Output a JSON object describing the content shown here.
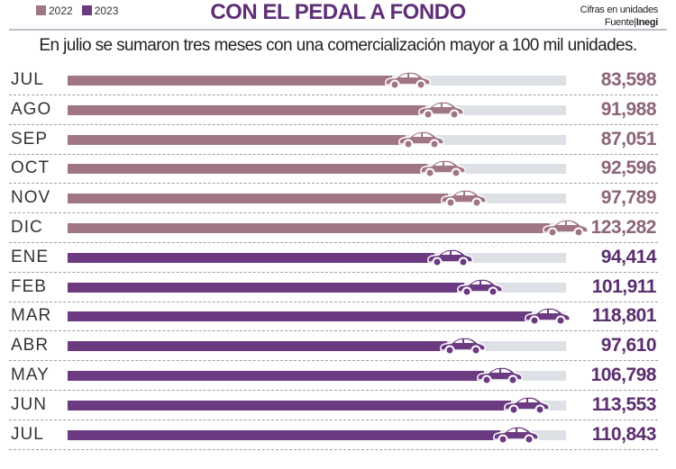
{
  "header": {
    "title": "CON EL PEDAL A FONDO",
    "subtitle": "En julio se sumaron tres meses con una comercialización mayor a 100 mil unidades.",
    "note_line1": "Cifras en unidades",
    "note_source_label": "Fuente|",
    "note_source": "Inegi"
  },
  "colors": {
    "2022": "#a07585",
    "2023": "#6b3a80",
    "val2022": "#8c6478",
    "val2023": "#5a2d6e",
    "track": "#dde1e6"
  },
  "chart_data": {
    "type": "bar",
    "orientation": "horizontal",
    "legend": [
      {
        "name": "2022"
      },
      {
        "name": "2023"
      }
    ],
    "legend_placement": "top-left",
    "icon": "car-icon",
    "rows": [
      {
        "label": "JUL",
        "value": 83598,
        "text": "83,598",
        "series": "2022"
      },
      {
        "label": "AGO",
        "value": 91988,
        "text": "91,988",
        "series": "2022"
      },
      {
        "label": "SEP",
        "value": 87051,
        "text": "87,051",
        "series": "2022"
      },
      {
        "label": "OCT",
        "value": 92596,
        "text": "92,596",
        "series": "2022"
      },
      {
        "label": "NOV",
        "value": 97789,
        "text": "97,789",
        "series": "2022"
      },
      {
        "label": "DIC",
        "value": 123282,
        "text": "123,282",
        "series": "2022"
      },
      {
        "label": "ENE",
        "value": 94414,
        "text": "94,414",
        "series": "2023"
      },
      {
        "label": "FEB",
        "value": 101911,
        "text": "101,911",
        "series": "2023"
      },
      {
        "label": "MAR",
        "value": 118801,
        "text": "118,801",
        "series": "2023"
      },
      {
        "label": "ABR",
        "value": 97610,
        "text": "97,610",
        "series": "2023"
      },
      {
        "label": "MAY",
        "value": 106798,
        "text": "106,798",
        "series": "2023"
      },
      {
        "label": "JUN",
        "value": 113553,
        "text": "113,553",
        "series": "2023"
      },
      {
        "label": "JUL",
        "value": 110843,
        "text": "110,843",
        "series": "2023"
      }
    ]
  }
}
